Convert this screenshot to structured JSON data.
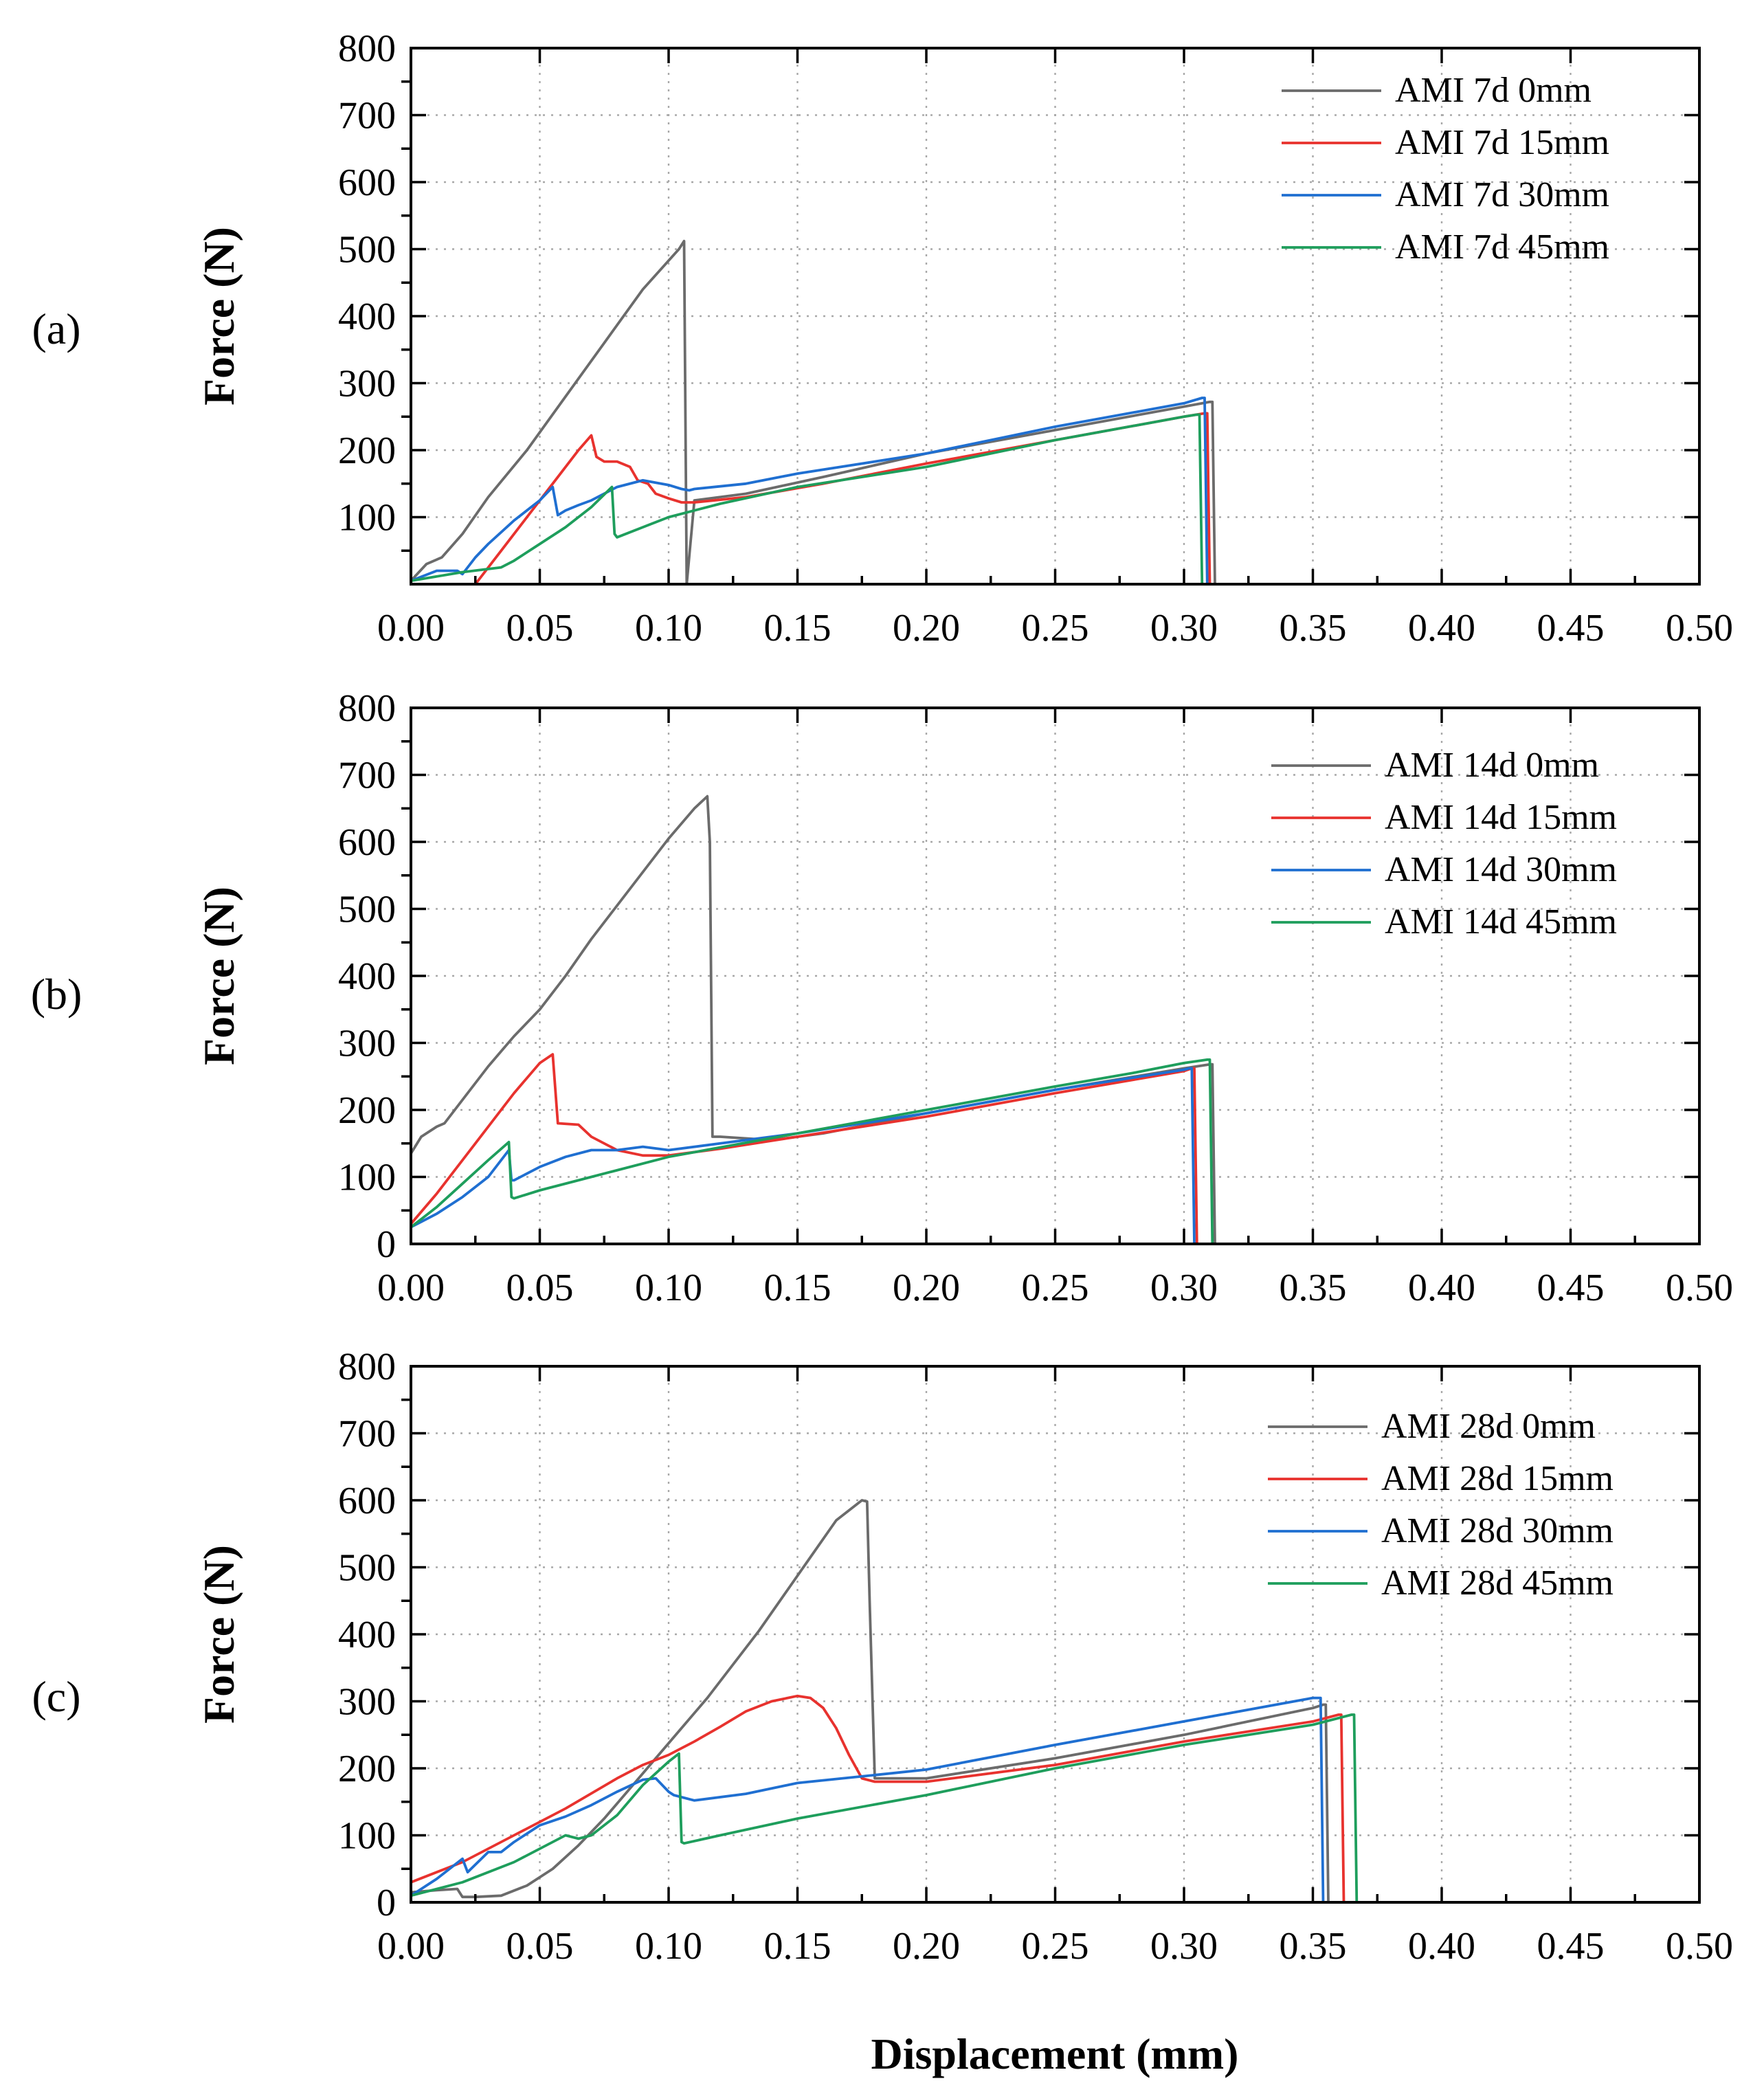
{
  "figure": {
    "xlabel": "Displacement (mm)",
    "ylabel": "Force (N)"
  },
  "colors": {
    "0mm": "#6b6b6b",
    "15mm": "#e8322e",
    "30mm": "#1f6fd1",
    "45mm": "#1e9e5c"
  },
  "chart_data": [
    {
      "type": "line",
      "panel_label": "(a)",
      "xlabel": "Displacement (mm)",
      "ylabel": "Force (N)",
      "xlim": [
        0,
        0.5
      ],
      "ylim": [
        0,
        800
      ],
      "xticks": [
        "0.00",
        "0.05",
        "0.10",
        "0.15",
        "0.20",
        "0.25",
        "0.30",
        "0.35",
        "0.40",
        "0.45",
        "0.50"
      ],
      "yticks": [
        "100",
        "200",
        "300",
        "400",
        "500",
        "600",
        "700",
        "800"
      ],
      "grid": true,
      "legend_position": "top-right",
      "series": [
        {
          "name": "AMI 7d 0mm",
          "color_key": "0mm",
          "x": [
            0,
            0.006,
            0.012,
            0.02,
            0.03,
            0.045,
            0.06,
            0.075,
            0.09,
            0.104,
            0.106,
            0.107,
            0.11,
            0.13,
            0.16,
            0.2,
            0.25,
            0.3,
            0.31,
            0.311,
            0.312
          ],
          "y": [
            5,
            30,
            40,
            75,
            130,
            200,
            280,
            360,
            440,
            500,
            512,
            0,
            125,
            135,
            160,
            195,
            230,
            265,
            272,
            272,
            0
          ]
        },
        {
          "name": "AMI 7d 15mm",
          "color_key": "15mm",
          "x": [
            0.025,
            0.035,
            0.045,
            0.055,
            0.065,
            0.07,
            0.072,
            0.075,
            0.08,
            0.085,
            0.088,
            0.092,
            0.095,
            0.1,
            0.105,
            0.11,
            0.13,
            0.16,
            0.2,
            0.25,
            0.3,
            0.308,
            0.309,
            0.31
          ],
          "y": [
            0,
            50,
            100,
            150,
            200,
            222,
            190,
            183,
            183,
            175,
            155,
            150,
            135,
            128,
            122,
            122,
            130,
            150,
            180,
            215,
            250,
            255,
            255,
            0
          ]
        },
        {
          "name": "AMI 7d 30mm",
          "color_key": "30mm",
          "x": [
            0,
            0.01,
            0.018,
            0.02,
            0.025,
            0.03,
            0.04,
            0.05,
            0.055,
            0.057,
            0.06,
            0.065,
            0.07,
            0.08,
            0.09,
            0.1,
            0.105,
            0.108,
            0.11,
            0.13,
            0.15,
            0.2,
            0.25,
            0.3,
            0.307,
            0.308,
            0.309
          ],
          "y": [
            5,
            20,
            20,
            15,
            40,
            60,
            95,
            125,
            145,
            103,
            110,
            118,
            125,
            145,
            155,
            148,
            142,
            140,
            142,
            150,
            165,
            195,
            235,
            270,
            278,
            278,
            0
          ]
        },
        {
          "name": "AMI 7d 45mm",
          "color_key": "45mm",
          "x": [
            0,
            0.02,
            0.035,
            0.04,
            0.05,
            0.06,
            0.07,
            0.078,
            0.079,
            0.08,
            0.09,
            0.1,
            0.12,
            0.15,
            0.2,
            0.25,
            0.3,
            0.305,
            0.306,
            0.307
          ],
          "y": [
            5,
            18,
            25,
            35,
            60,
            85,
            115,
            145,
            75,
            70,
            85,
            100,
            120,
            145,
            175,
            215,
            250,
            253,
            253,
            0
          ]
        }
      ]
    },
    {
      "type": "line",
      "panel_label": "(b)",
      "xlabel": "Displacement (mm)",
      "ylabel": "Force (N)",
      "xlim": [
        0,
        0.5
      ],
      "ylim": [
        0,
        800
      ],
      "xticks": [
        "0.00",
        "0.05",
        "0.10",
        "0.15",
        "0.20",
        "0.25",
        "0.30",
        "0.35",
        "0.40",
        "0.45",
        "0.50"
      ],
      "yticks": [
        "0",
        "100",
        "200",
        "300",
        "400",
        "500",
        "600",
        "700",
        "800"
      ],
      "grid": true,
      "legend_position": "top-right",
      "series": [
        {
          "name": "AMI 14d 0mm",
          "color_key": "0mm",
          "x": [
            0,
            0.004,
            0.01,
            0.013,
            0.02,
            0.03,
            0.04,
            0.05,
            0.06,
            0.07,
            0.08,
            0.09,
            0.1,
            0.11,
            0.115,
            0.116,
            0.117,
            0.12,
            0.14,
            0.16,
            0.2,
            0.25,
            0.3,
            0.31,
            0.311,
            0.312
          ],
          "y": [
            135,
            160,
            175,
            180,
            215,
            265,
            310,
            350,
            400,
            455,
            505,
            555,
            605,
            650,
            668,
            600,
            160,
            160,
            155,
            165,
            195,
            230,
            262,
            268,
            268,
            0
          ]
        },
        {
          "name": "AMI 14d 15mm",
          "color_key": "15mm",
          "x": [
            0,
            0.01,
            0.02,
            0.03,
            0.04,
            0.05,
            0.055,
            0.057,
            0.065,
            0.07,
            0.08,
            0.09,
            0.1,
            0.12,
            0.15,
            0.2,
            0.25,
            0.3,
            0.303,
            0.304,
            0.305
          ],
          "y": [
            30,
            75,
            125,
            175,
            225,
            270,
            283,
            180,
            178,
            160,
            140,
            132,
            132,
            142,
            160,
            190,
            225,
            258,
            262,
            262,
            0
          ]
        },
        {
          "name": "AMI 14d 30mm",
          "color_key": "30mm",
          "x": [
            0,
            0.01,
            0.02,
            0.03,
            0.038,
            0.039,
            0.04,
            0.05,
            0.06,
            0.07,
            0.08,
            0.09,
            0.1,
            0.12,
            0.15,
            0.2,
            0.25,
            0.3,
            0.302,
            0.303,
            0.304
          ],
          "y": [
            25,
            45,
            70,
            100,
            140,
            95,
            95,
            115,
            130,
            140,
            140,
            145,
            140,
            150,
            165,
            195,
            230,
            260,
            262,
            262,
            0
          ]
        },
        {
          "name": "AMI 14d 45mm",
          "color_key": "45mm",
          "x": [
            0,
            0.01,
            0.02,
            0.03,
            0.038,
            0.039,
            0.04,
            0.05,
            0.07,
            0.1,
            0.15,
            0.2,
            0.25,
            0.28,
            0.3,
            0.309,
            0.31,
            0.311
          ],
          "y": [
            25,
            55,
            90,
            125,
            152,
            70,
            68,
            80,
            100,
            130,
            165,
            200,
            235,
            255,
            270,
            275,
            275,
            0
          ]
        }
      ]
    },
    {
      "type": "line",
      "panel_label": "(c)",
      "xlabel": "Displacement (mm)",
      "ylabel": "Force (N)",
      "xlim": [
        0,
        0.5
      ],
      "ylim": [
        0,
        800
      ],
      "xticks": [
        "0.00",
        "0.05",
        "0.10",
        "0.15",
        "0.20",
        "0.25",
        "0.30",
        "0.35",
        "0.40",
        "0.45",
        "0.50"
      ],
      "yticks": [
        "0",
        "100",
        "200",
        "300",
        "400",
        "500",
        "600",
        "700",
        "800"
      ],
      "grid": true,
      "legend_position": "top-right",
      "series": [
        {
          "name": "AMI 28d 0mm",
          "color_key": "0mm",
          "x": [
            0,
            0.01,
            0.018,
            0.02,
            0.025,
            0.035,
            0.045,
            0.055,
            0.065,
            0.075,
            0.085,
            0.095,
            0.105,
            0.115,
            0.125,
            0.135,
            0.145,
            0.155,
            0.165,
            0.175,
            0.177,
            0.178,
            0.18,
            0.2,
            0.25,
            0.3,
            0.35,
            0.354,
            0.355,
            0.356
          ],
          "y": [
            15,
            18,
            20,
            8,
            8,
            10,
            25,
            50,
            85,
            125,
            170,
            215,
            260,
            305,
            355,
            405,
            460,
            515,
            570,
            600,
            598,
            450,
            185,
            185,
            215,
            250,
            290,
            295,
            295,
            0
          ]
        },
        {
          "name": "AMI 28d 15mm",
          "color_key": "15mm",
          "x": [
            0,
            0.02,
            0.04,
            0.06,
            0.08,
            0.09,
            0.1,
            0.11,
            0.12,
            0.13,
            0.14,
            0.15,
            0.155,
            0.16,
            0.165,
            0.17,
            0.175,
            0.18,
            0.2,
            0.25,
            0.3,
            0.35,
            0.36,
            0.361,
            0.362
          ],
          "y": [
            30,
            60,
            100,
            140,
            185,
            205,
            220,
            240,
            262,
            285,
            300,
            308,
            305,
            290,
            260,
            220,
            185,
            180,
            180,
            205,
            240,
            270,
            280,
            280,
            0
          ]
        },
        {
          "name": "AMI 28d 30mm",
          "color_key": "30mm",
          "x": [
            0,
            0.01,
            0.02,
            0.022,
            0.03,
            0.035,
            0.04,
            0.05,
            0.06,
            0.07,
            0.08,
            0.09,
            0.095,
            0.1,
            0.102,
            0.11,
            0.13,
            0.15,
            0.18,
            0.2,
            0.25,
            0.3,
            0.35,
            0.352,
            0.353,
            0.354
          ],
          "y": [
            10,
            35,
            65,
            45,
            75,
            75,
            90,
            115,
            128,
            145,
            165,
            183,
            185,
            165,
            160,
            152,
            162,
            178,
            190,
            198,
            235,
            270,
            305,
            305,
            305,
            0
          ]
        },
        {
          "name": "AMI 28d 45mm",
          "color_key": "45mm",
          "x": [
            0,
            0.02,
            0.04,
            0.06,
            0.065,
            0.07,
            0.08,
            0.09,
            0.1,
            0.104,
            0.105,
            0.106,
            0.12,
            0.15,
            0.2,
            0.25,
            0.3,
            0.35,
            0.365,
            0.366,
            0.367
          ],
          "y": [
            10,
            30,
            60,
            100,
            95,
            100,
            130,
            175,
            210,
            222,
            90,
            88,
            100,
            125,
            160,
            200,
            235,
            265,
            280,
            280,
            0
          ]
        }
      ]
    }
  ]
}
